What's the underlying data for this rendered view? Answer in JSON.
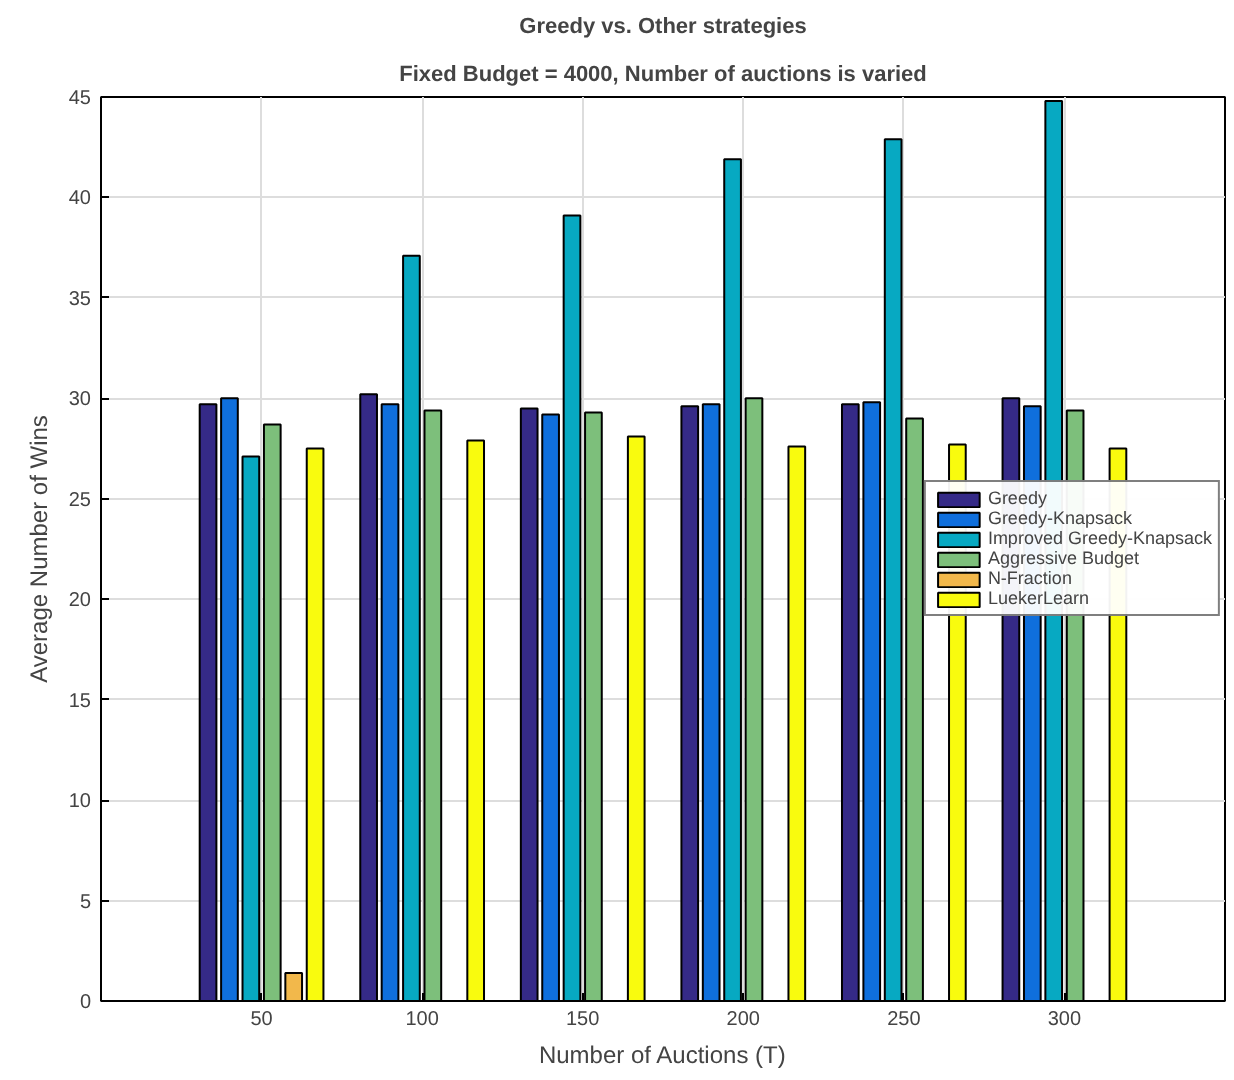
{
  "chart_data": {
    "type": "bar",
    "title": "Greedy vs. Other strategies",
    "subtitle": "Fixed Budget = 4000, Number of auctions is varied",
    "xlabel": "Number of Auctions (T)",
    "ylabel": "Average Number of Wins",
    "x": [
      50,
      100,
      150,
      200,
      250,
      300
    ],
    "series": [
      {
        "name": "Greedy",
        "color": "#352a87",
        "values": [
          29.7,
          30.2,
          29.5,
          29.6,
          29.7,
          30.0
        ]
      },
      {
        "name": "Greedy-Knapsack",
        "color": "#0f6fdc",
        "values": [
          30.0,
          29.7,
          29.2,
          29.7,
          29.8,
          29.6
        ]
      },
      {
        "name": "Improved Greedy-Knapsack",
        "color": "#07a9c2",
        "values": [
          27.1,
          37.1,
          39.1,
          41.9,
          42.9,
          44.8
        ]
      },
      {
        "name": "Aggressive Budget",
        "color": "#7dbf7b",
        "values": [
          28.7,
          29.4,
          29.3,
          30.0,
          29.0,
          29.4
        ]
      },
      {
        "name": "N-Fraction",
        "color": "#f2b84b",
        "values": [
          1.4,
          null,
          null,
          null,
          null,
          null
        ]
      },
      {
        "name": "LuekerLearn",
        "color": "#f9fb0e",
        "values": [
          27.5,
          27.9,
          28.1,
          27.6,
          27.7,
          27.5
        ]
      }
    ],
    "xlim": [
      0,
      350
    ],
    "xticks": [
      50,
      100,
      150,
      200,
      250,
      300
    ],
    "ylim": [
      0,
      45
    ],
    "yticks": [
      0,
      5,
      10,
      15,
      20,
      25,
      30,
      35,
      40,
      45
    ],
    "grid": true,
    "legend": "right"
  }
}
